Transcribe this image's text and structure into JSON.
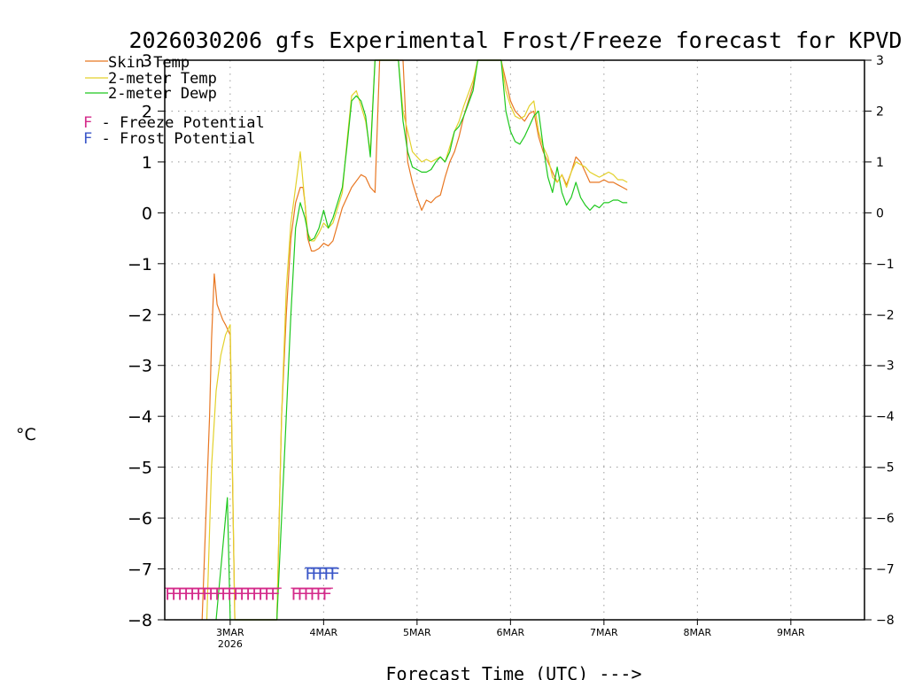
{
  "chart_data": {
    "type": "line",
    "title": "2026030206 gfs Experimental Frost/Freeze forecast for KPVD",
    "xlabel": "Forecast Time (UTC) --->",
    "ylabel": "°C",
    "ylim": [
      -8,
      3
    ],
    "xlim": [
      2.3,
      9.75
    ],
    "grid": true,
    "y_ticks": [
      -8,
      -7,
      -6,
      -5,
      -4,
      -3,
      -2,
      -1,
      0,
      1,
      2,
      3
    ],
    "y_tick_labels": [
      "−8",
      "−7",
      "−6",
      "−5",
      "−4",
      "−3",
      "−2",
      "−1",
      "0",
      "1",
      "2",
      "3"
    ],
    "x_ticks": [
      {
        "day": 3,
        "label": "3MAR",
        "sublabel": "2026"
      },
      {
        "day": 4,
        "label": "4MAR",
        "sublabel": ""
      },
      {
        "day": 5,
        "label": "5MAR",
        "sublabel": ""
      },
      {
        "day": 6,
        "label": "6MAR",
        "sublabel": ""
      },
      {
        "day": 7,
        "label": "7MAR",
        "sublabel": ""
      },
      {
        "day": 8,
        "label": "8MAR",
        "sublabel": ""
      },
      {
        "day": 9,
        "label": "9MAR",
        "sublabel": ""
      }
    ],
    "legend": [
      {
        "label": "Skin Temp",
        "color": "#e87722"
      },
      {
        "label": "2-meter Temp",
        "color": "#e3d12b"
      },
      {
        "label": "2-meter Dewp",
        "color": "#1ec81e"
      },
      {
        "prefix": "F",
        "label": " - Freeze Potential",
        "color": "#d42a8a"
      },
      {
        "prefix": "F",
        "label": " - Frost Potential",
        "color": "#3a56c8"
      }
    ],
    "series": [
      {
        "name": "Skin Temp",
        "color": "#e87722",
        "x": [
          2.7,
          2.74,
          2.78,
          2.8,
          2.83,
          2.86,
          2.88,
          2.9,
          2.92,
          2.95,
          3.0,
          3.05,
          3.1,
          3.3,
          3.5,
          3.55,
          3.6,
          3.65,
          3.7,
          3.75,
          3.78,
          3.8,
          3.83,
          3.87,
          3.9,
          3.95,
          4.0,
          4.05,
          4.1,
          4.2,
          4.3,
          4.4,
          4.45,
          4.5,
          4.55,
          4.6,
          4.65,
          4.7,
          4.8,
          4.85,
          4.9,
          4.95,
          5.0,
          5.05,
          5.1,
          5.15,
          5.2,
          5.25,
          5.3,
          5.35,
          5.4,
          5.45,
          5.5,
          5.6,
          5.65,
          5.7,
          5.75,
          5.8,
          5.85,
          5.9,
          5.95,
          6.0,
          6.05,
          6.1,
          6.15,
          6.2,
          6.25,
          6.3,
          6.35,
          6.4,
          6.45,
          6.5,
          6.55,
          6.6,
          6.65,
          6.7,
          6.75,
          6.8,
          6.85,
          6.9,
          6.95,
          7.0,
          7.05,
          7.1,
          7.15,
          7.2,
          7.25
        ],
        "values": [
          -8,
          -6,
          -4,
          -2.5,
          -1.2,
          -1.8,
          -1.9,
          -2.0,
          -2.1,
          -2.2,
          -2.4,
          -8,
          -8,
          -8,
          -8,
          -4,
          -2,
          -0.5,
          0.2,
          0.5,
          0.5,
          0.2,
          -0.5,
          -0.75,
          -0.75,
          -0.7,
          -0.6,
          -0.65,
          -0.55,
          0.1,
          0.5,
          0.75,
          0.7,
          0.5,
          0.4,
          3,
          3,
          3,
          3,
          3,
          1,
          0.6,
          0.3,
          0.05,
          0.25,
          0.2,
          0.3,
          0.35,
          0.7,
          1.0,
          1.2,
          1.5,
          1.9,
          2.5,
          3,
          3,
          3,
          3,
          3,
          3,
          2.6,
          2.2,
          2.0,
          1.9,
          1.8,
          1.95,
          2.0,
          1.5,
          1.2,
          1.0,
          0.8,
          0.6,
          0.75,
          0.55,
          0.8,
          1.1,
          1.0,
          0.8,
          0.6,
          0.6,
          0.6,
          0.65,
          0.6,
          0.6,
          0.55,
          0.5,
          0.45
        ]
      },
      {
        "name": "2-meter Temp",
        "color": "#e3d12b",
        "x": [
          2.75,
          2.8,
          2.85,
          2.9,
          2.95,
          3.0,
          3.05,
          3.1,
          3.3,
          3.5,
          3.55,
          3.6,
          3.65,
          3.7,
          3.75,
          3.78,
          3.8,
          3.83,
          3.87,
          3.9,
          3.95,
          4.0,
          4.05,
          4.1,
          4.2,
          4.25,
          4.3,
          4.35,
          4.4,
          4.45,
          4.5,
          4.55,
          4.6,
          4.65,
          4.7,
          4.8,
          4.85,
          4.9,
          4.95,
          5.0,
          5.05,
          5.1,
          5.15,
          5.2,
          5.25,
          5.3,
          5.35,
          5.4,
          5.45,
          5.5,
          5.6,
          5.65,
          5.7,
          5.75,
          5.8,
          5.85,
          5.9,
          5.95,
          6.0,
          6.05,
          6.1,
          6.15,
          6.2,
          6.25,
          6.3,
          6.35,
          6.4,
          6.45,
          6.5,
          6.55,
          6.6,
          6.65,
          6.7,
          6.75,
          6.8,
          6.85,
          6.9,
          6.95,
          7.0,
          7.05,
          7.1,
          7.15,
          7.2,
          7.25
        ],
        "values": [
          -8,
          -5,
          -3.5,
          -2.8,
          -2.4,
          -2.2,
          -8,
          -8,
          -8,
          -8,
          -4,
          -1.5,
          -0.2,
          0.5,
          1.2,
          0.6,
          0.2,
          -0.4,
          -0.55,
          -0.55,
          -0.4,
          -0.2,
          -0.3,
          -0.2,
          0.4,
          1.4,
          2.3,
          2.4,
          2.1,
          1.8,
          1.2,
          3,
          3,
          3,
          3,
          3,
          2.0,
          1.6,
          1.2,
          1.1,
          1.0,
          1.05,
          1.0,
          1.05,
          1.1,
          1.0,
          1.3,
          1.6,
          1.8,
          2.1,
          2.6,
          3,
          3,
          3,
          3,
          3,
          3,
          2.4,
          2.1,
          1.9,
          1.85,
          1.9,
          2.1,
          2.2,
          1.6,
          1.3,
          1.1,
          0.7,
          0.6,
          0.75,
          0.5,
          0.8,
          1.0,
          0.95,
          0.9,
          0.8,
          0.75,
          0.7,
          0.75,
          0.8,
          0.75,
          0.65,
          0.65,
          0.6
        ]
      },
      {
        "name": "2-meter Dewp",
        "color": "#1ec81e",
        "x": [
          2.85,
          2.9,
          2.95,
          2.97,
          3.0,
          3.05,
          3.1,
          3.3,
          3.5,
          3.55,
          3.6,
          3.65,
          3.7,
          3.75,
          3.8,
          3.85,
          3.9,
          3.95,
          4.0,
          4.05,
          4.1,
          4.2,
          4.25,
          4.3,
          4.35,
          4.4,
          4.45,
          4.5,
          4.55,
          4.6,
          4.65,
          4.7,
          4.8,
          4.85,
          4.9,
          4.95,
          5.0,
          5.05,
          5.1,
          5.15,
          5.2,
          5.25,
          5.3,
          5.35,
          5.4,
          5.45,
          5.5,
          5.6,
          5.65,
          5.7,
          5.75,
          5.8,
          5.85,
          5.9,
          5.95,
          6.0,
          6.05,
          6.1,
          6.15,
          6.2,
          6.25,
          6.3,
          6.35,
          6.4,
          6.45,
          6.5,
          6.55,
          6.6,
          6.65,
          6.7,
          6.75,
          6.8,
          6.85,
          6.9,
          6.95,
          7.0,
          7.05,
          7.1,
          7.15,
          7.2,
          7.25
        ],
        "values": [
          -8,
          -7,
          -6,
          -5.6,
          -8,
          -8,
          -8,
          -8,
          -8,
          -6,
          -4,
          -2,
          -0.3,
          0.2,
          -0.1,
          -0.55,
          -0.5,
          -0.3,
          0.05,
          -0.3,
          -0.1,
          0.5,
          1.3,
          2.2,
          2.3,
          2.2,
          1.9,
          1.1,
          3,
          3,
          3,
          3,
          3,
          1.8,
          1.2,
          0.9,
          0.85,
          0.8,
          0.8,
          0.85,
          1.0,
          1.1,
          1.0,
          1.2,
          1.6,
          1.7,
          1.9,
          2.4,
          3,
          3,
          3,
          3,
          3,
          3,
          2.0,
          1.6,
          1.4,
          1.35,
          1.5,
          1.7,
          1.9,
          2.0,
          1.3,
          0.7,
          0.4,
          0.9,
          0.4,
          0.15,
          0.3,
          0.6,
          0.3,
          0.15,
          0.05,
          0.15,
          0.1,
          0.2,
          0.2,
          0.25,
          0.25,
          0.2,
          0.2
        ]
      }
    ],
    "freeze_potential": {
      "label": "F",
      "color": "#d42a8a",
      "segments": [
        [
          2.3,
          3.55
        ],
        [
          3.65,
          4.1
        ]
      ],
      "y": -7.5
    },
    "frost_potential": {
      "label": "F",
      "color": "#3a56c8",
      "segments": [
        [
          3.8,
          4.15
        ]
      ],
      "y": -7.1
    }
  }
}
